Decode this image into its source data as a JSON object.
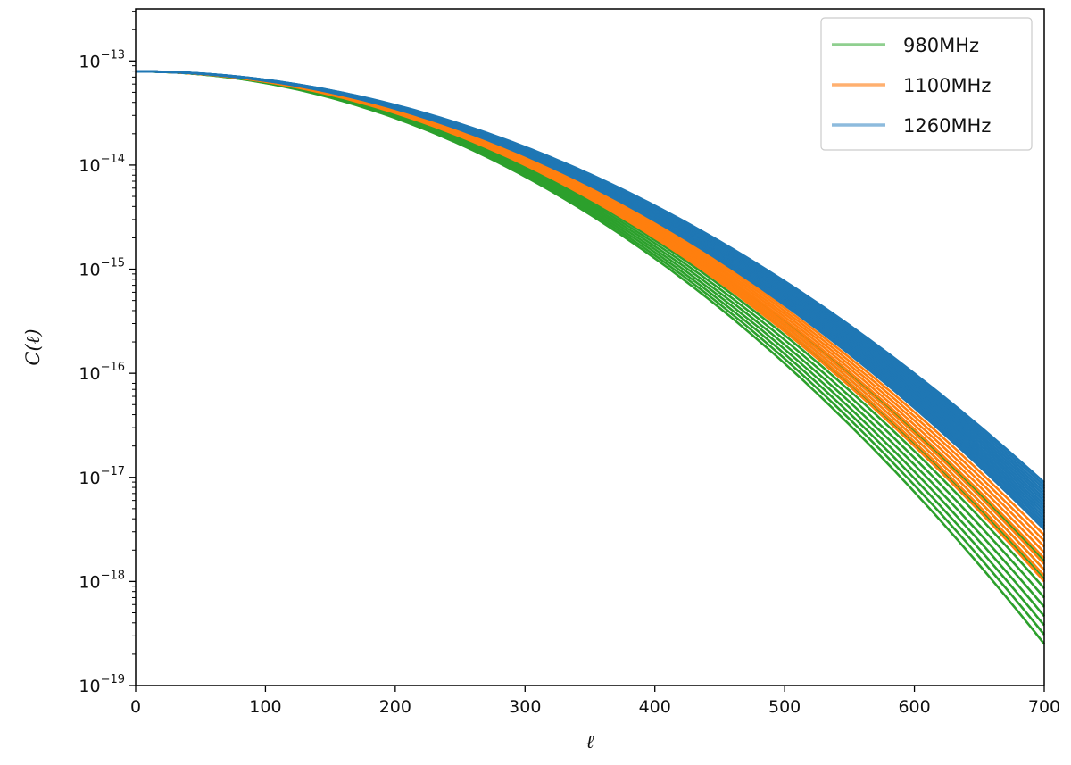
{
  "chart_data": {
    "type": "line",
    "title": "",
    "xlabel": "ℓ",
    "ylabel": "C(ℓ)",
    "xlim": [
      0,
      700
    ],
    "ylim_log10": [
      -19,
      -12.5
    ],
    "yscale": "log",
    "grid": false,
    "legend_position": "top-right",
    "x_ticks": [
      "0",
      "100",
      "200",
      "300",
      "400",
      "500",
      "600",
      "700"
    ],
    "y_ticks": [
      {
        "base": "10",
        "exponent": "−19"
      },
      {
        "base": "10",
        "exponent": "−18"
      },
      {
        "base": "10",
        "exponent": "−17"
      },
      {
        "base": "10",
        "exponent": "−16"
      },
      {
        "base": "10",
        "exponent": "−15"
      },
      {
        "base": "10",
        "exponent": "−14"
      },
      {
        "base": "10",
        "exponent": "−13"
      }
    ],
    "x": [
      0,
      50,
      100,
      150,
      200,
      250,
      300,
      350,
      400,
      450,
      500,
      550,
      600,
      650,
      700
    ],
    "series_groups": [
      {
        "name": "980MHz",
        "color": "#2ca02c",
        "legend_color": "#8fcf8f",
        "curve_count": 10,
        "endpoint_log10_range": [
          -18.6,
          -17.8
        ]
      },
      {
        "name": "1100MHz",
        "color": "#ff7f0e",
        "legend_color": "#ffb070",
        "curve_count": 10,
        "endpoint_log10_range": [
          -18.0,
          -17.5
        ]
      },
      {
        "name": "1260MHz",
        "color": "#1f77b4",
        "legend_color": "#8dbbdd",
        "curve_count": 16,
        "endpoint_log10_range": [
          -17.5,
          -17.05
        ]
      }
    ],
    "start_value_log10": -13.1
  }
}
